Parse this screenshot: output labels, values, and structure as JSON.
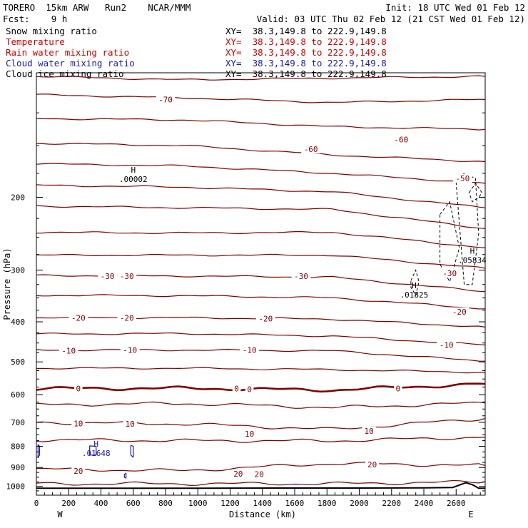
{
  "header": {
    "model_line": "TORERO  15km ARW   Run2    NCAR/MMM",
    "init_line": "Init: 18 UTC Wed 01 Feb 12",
    "fcst_line": "Fcst:    9 h",
    "valid_line": "Valid: 03 UTC Thu 02 Feb 12 (21 CST Wed 01 Feb 12)"
  },
  "legend": [
    {
      "name": "Snow mixing ratio",
      "color": "#000000",
      "xy": "XY=  38.3,149.8 to 222.9,149.8"
    },
    {
      "name": "Temperature",
      "color": "#cc0000",
      "xy": "XY=  38.3,149.8 to 222.9,149.8"
    },
    {
      "name": "Rain water mixing ratio",
      "color": "#cc0000",
      "xy": "XY=  38.3,149.8 to 222.9,149.8"
    },
    {
      "name": "Cloud water mixing ratio",
      "color": "#1a1aa6",
      "xy": "XY=  38.3,149.8 to 222.9,149.8"
    },
    {
      "name": "Cloud ice mixing ratio",
      "color": "#000000",
      "xy": "XY=  38.3,149.8 to 222.9,149.8"
    }
  ],
  "colors": {
    "isotherm": "#800000",
    "cloud_water": "#1a1aa6",
    "cloud_ice": "#000000",
    "terrain": "#000000"
  },
  "chart_data": {
    "type": "contour",
    "xlabel": "Distance (km)",
    "ylabel": "Pressure (hPa)",
    "x_ticks": [
      0,
      200,
      400,
      600,
      800,
      1000,
      1200,
      1400,
      1600,
      1800,
      2000,
      2200,
      2400,
      2600
    ],
    "x_minor_step": 50,
    "xlim": [
      0,
      2780
    ],
    "y_ticks": [
      200,
      300,
      400,
      500,
      600,
      700,
      800,
      900,
      1000
    ],
    "y_scale": "log",
    "ylim": [
      1050,
      100
    ],
    "x_end_labels": {
      "left": "W",
      "right": "E"
    },
    "isotherm_interval_c": 5,
    "isotherms": [
      {
        "level": -75,
        "p": [
          102,
          104,
          103,
          102
        ]
      },
      {
        "level": -70,
        "p": [
          113,
          115,
          118,
          116
        ]
      },
      {
        "level": -65,
        "p": [
          129,
          130,
          135,
          137
        ]
      },
      {
        "level": -60,
        "p": [
          148,
          150,
          158,
          164
        ]
      },
      {
        "level": -55,
        "p": [
          166,
          168,
          175,
          185
        ]
      },
      {
        "level": -50,
        "p": [
          187,
          189,
          194,
          212
        ]
      },
      {
        "level": -45,
        "p": [
          210,
          212,
          214,
          238
        ]
      },
      {
        "level": -40,
        "p": [
          243,
          244,
          243,
          265
        ]
      },
      {
        "level": -35,
        "p": [
          276,
          276,
          276,
          297
        ]
      },
      {
        "level": -30,
        "p": [
          309,
          310,
          312,
          338
        ]
      },
      {
        "level": -25,
        "p": [
          345,
          346,
          350,
          372
        ]
      },
      {
        "level": -20,
        "p": [
          391,
          391,
          394,
          412
        ]
      },
      {
        "level": -15,
        "p": [
          428,
          427,
          433,
          455
        ]
      },
      {
        "level": -10,
        "p": [
          468,
          468,
          470,
          498
        ]
      },
      {
        "level": -5,
        "p": [
          518,
          518,
          522,
          530
        ]
      },
      {
        "level": 0,
        "p": [
          580,
          579,
          585,
          565
        ]
      },
      {
        "level": 5,
        "p": [
          635,
          630,
          645,
          628
        ]
      },
      {
        "level": 10,
        "p": [
          700,
          706,
          728,
          685
        ]
      },
      {
        "level": 15,
        "p": [
          772,
          775,
          776,
          760
        ]
      },
      {
        "level": 20,
        "p": [
          908,
          916,
          880,
          890
        ]
      },
      {
        "level": 25,
        "p": [
          985,
          985,
          985,
          975
        ]
      }
    ],
    "isotherm_labels": [
      {
        "text": "-70",
        "x": 800,
        "p": 116
      },
      {
        "text": "-60",
        "x": 1700,
        "p": 153
      },
      {
        "text": "-60",
        "x": 2260,
        "p": 145
      },
      {
        "text": "-50",
        "x": 2640,
        "p": 180
      },
      {
        "text": "-30",
        "x": 440,
        "p": 310
      },
      {
        "text": "-30",
        "x": 560,
        "p": 310
      },
      {
        "text": "-30",
        "x": 1640,
        "p": 310
      },
      {
        "text": "-30",
        "x": 2560,
        "p": 305
      },
      {
        "text": "-20",
        "x": 260,
        "p": 391
      },
      {
        "text": "-20",
        "x": 560,
        "p": 391
      },
      {
        "text": "-20",
        "x": 1420,
        "p": 393
      },
      {
        "text": "-20",
        "x": 2620,
        "p": 378
      },
      {
        "text": "-10",
        "x": 200,
        "p": 470
      },
      {
        "text": "-10",
        "x": 580,
        "p": 468
      },
      {
        "text": "-10",
        "x": 1320,
        "p": 468
      },
      {
        "text": "-10",
        "x": 2540,
        "p": 455
      },
      {
        "text": "0",
        "x": 260,
        "p": 580
      },
      {
        "text": "0",
        "x": 1240,
        "p": 580
      },
      {
        "text": "0",
        "x": 1320,
        "p": 582
      },
      {
        "text": "0",
        "x": 2240,
        "p": 580
      },
      {
        "text": "10",
        "x": 260,
        "p": 705
      },
      {
        "text": "10",
        "x": 580,
        "p": 706
      },
      {
        "text": "10",
        "x": 1320,
        "p": 746
      },
      {
        "text": "10",
        "x": 2060,
        "p": 734
      },
      {
        "text": "20",
        "x": 260,
        "p": 918
      },
      {
        "text": "20",
        "x": 1250,
        "p": 932
      },
      {
        "text": "20",
        "x": 1380,
        "p": 934
      },
      {
        "text": "20",
        "x": 2080,
        "p": 886
      }
    ],
    "maxima": [
      {
        "mark": "H",
        "value": ".00002",
        "x": 600,
        "p": 177
      },
      {
        "mark": "H",
        "value": ".01825",
        "x": 2340,
        "p": 337
      },
      {
        "mark": "H",
        "value": ".05834",
        "x": 2700,
        "p": 278
      },
      {
        "mark": "H",
        "value": ".01648",
        "x": 370,
        "p": 815
      }
    ],
    "cloud_water_contours": [
      {
        "x": [
          10,
          20,
          20,
          10
        ],
        "p": [
          792,
          800,
          840,
          850
        ]
      },
      {
        "x": [
          330,
          370,
          370,
          330
        ],
        "p": [
          798,
          800,
          840,
          840
        ]
      },
      {
        "x": [
          585,
          600,
          600,
          585
        ],
        "p": [
          795,
          800,
          850,
          840
        ]
      },
      {
        "x": [
          545,
          555,
          555,
          545
        ],
        "p": [
          935,
          930,
          955,
          950
        ]
      }
    ],
    "cloud_ice_contours": [
      {
        "x": [
          2320,
          2350,
          2370,
          2350,
          2320
        ],
        "p": [
          318,
          300,
          320,
          345,
          330
        ]
      },
      {
        "x": [
          2500,
          2560,
          2620,
          2560,
          2500
        ],
        "p": [
          220,
          205,
          265,
          320,
          290
        ]
      },
      {
        "x": [
          2600,
          2650,
          2720,
          2740,
          2700,
          2650
        ],
        "p": [
          185,
          175,
          180,
          245,
          325,
          325
        ]
      },
      {
        "x": [
          2680,
          2720,
          2760,
          2740,
          2700
        ],
        "p": [
          195,
          185,
          195,
          200,
          205
        ]
      }
    ],
    "terrain": {
      "x": [
        0,
        500,
        1000,
        1500,
        2000,
        2400,
        2580,
        2660,
        2700,
        2740,
        2780
      ],
      "p": [
        1010,
        1010,
        1010,
        1009,
        1009,
        1008,
        1006,
        980,
        990,
        1010,
        1010
      ]
    }
  }
}
